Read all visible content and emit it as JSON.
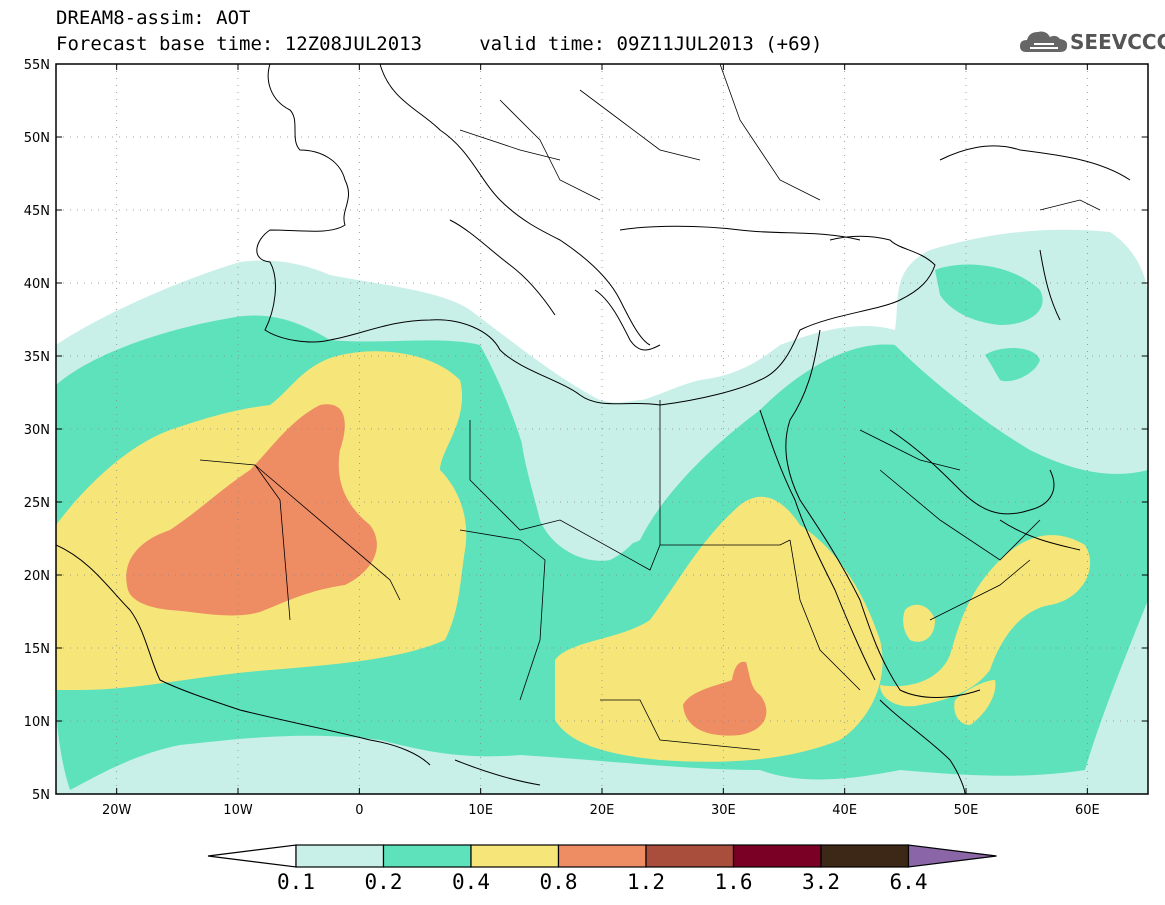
{
  "header": {
    "title_line1": "DREAM8-assim: AOT",
    "title_line2": "Forecast base time: 12Z08JUL2013     valid time: 09Z11JUL2013 (+69)"
  },
  "logo": {
    "text": "SEEVCCC",
    "icon": "cloud-logo-icon"
  },
  "map": {
    "lon_range": [
      -25,
      65
    ],
    "lat_range": [
      5,
      55
    ],
    "lat_labels": [
      "55N",
      "50N",
      "45N",
      "40N",
      "35N",
      "30N",
      "25N",
      "20N",
      "15N",
      "10N",
      "5N"
    ],
    "lon_labels": [
      "20W",
      "10W",
      "0",
      "10E",
      "20E",
      "30E",
      "40E",
      "50E",
      "60E"
    ],
    "grid": "dotted",
    "background_color": "#ffffff",
    "border_color": "#000000"
  },
  "legend": {
    "bins": [
      {
        "color": "#c8f0e8"
      },
      {
        "color": "#5ee2bb"
      },
      {
        "color": "#f6e67a"
      },
      {
        "color": "#ee8c64"
      },
      {
        "color": "#a94d3c"
      },
      {
        "color": "#7a0026"
      },
      {
        "color": "#3d2716"
      }
    ],
    "lower_arrow_color": "#ffffff",
    "upper_arrow_color": "#8a66a8",
    "labels": [
      "0.1",
      "0.2",
      "0.4",
      "0.8",
      "1.2",
      "1.6",
      "3.2",
      "6.4"
    ]
  }
}
